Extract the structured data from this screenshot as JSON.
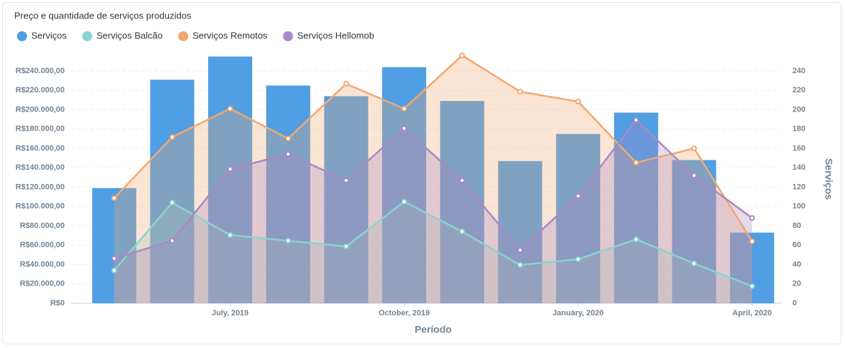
{
  "chart_data": {
    "type": "combo",
    "title": "Preço e quantidade de serviços produzidos",
    "x_label": "Período",
    "y2_label": "Serviços",
    "categories": [
      null,
      null,
      "July, 2019",
      null,
      null,
      "October, 2019",
      null,
      null,
      "January, 2020",
      null,
      null,
      "April, 2020"
    ],
    "series": [
      {
        "name": "Serviços",
        "type": "bar",
        "axis": "y2",
        "color": "#509ee3",
        "values": [
          119,
          231,
          255,
          225,
          214,
          244,
          209,
          147,
          175,
          197,
          148,
          73
        ]
      },
      {
        "name": "Serviços Balcão",
        "type": "area",
        "color": "#88d4d0",
        "values": [
          34000,
          104000,
          70500,
          64600,
          58700,
          105000,
          74100,
          39600,
          45500,
          66100,
          41100,
          17600
        ]
      },
      {
        "name": "Serviços Remotos",
        "type": "area",
        "color": "#f2a86f",
        "values": [
          108600,
          171700,
          201100,
          170300,
          226800,
          201100,
          256100,
          218700,
          208400,
          145300,
          160000,
          63900
        ]
      },
      {
        "name": "Serviços Hellomob",
        "type": "area",
        "color": "#a989c5",
        "values": [
          46200,
          64600,
          138700,
          154100,
          127000,
          180600,
          127000,
          55000,
          110800,
          189400,
          132100,
          88100
        ]
      }
    ],
    "ylim": [
      0,
      260000
    ],
    "yticks": [
      {
        "value": 0,
        "label": "R$0"
      },
      {
        "value": 20000,
        "label": "R$20.000,00"
      },
      {
        "value": 40000,
        "label": "R$40.000,00"
      },
      {
        "value": 60000,
        "label": "R$60.000,00"
      },
      {
        "value": 80000,
        "label": "R$80.000,00"
      },
      {
        "value": 100000,
        "label": "R$100.000,00"
      },
      {
        "value": 120000,
        "label": "R$120.000,00"
      },
      {
        "value": 140000,
        "label": "R$140.000,00"
      },
      {
        "value": 160000,
        "label": "R$160.000,00"
      },
      {
        "value": 180000,
        "label": "R$180.000,00"
      },
      {
        "value": 200000,
        "label": "R$200.000,00"
      },
      {
        "value": 220000,
        "label": "R$220.000,00"
      },
      {
        "value": 240000,
        "label": "R$240.000,00"
      }
    ],
    "y2lim": [
      0,
      260
    ],
    "y2ticks": [
      0,
      20,
      40,
      60,
      80,
      100,
      120,
      140,
      160,
      180,
      200,
      220,
      240
    ],
    "grid": true
  }
}
